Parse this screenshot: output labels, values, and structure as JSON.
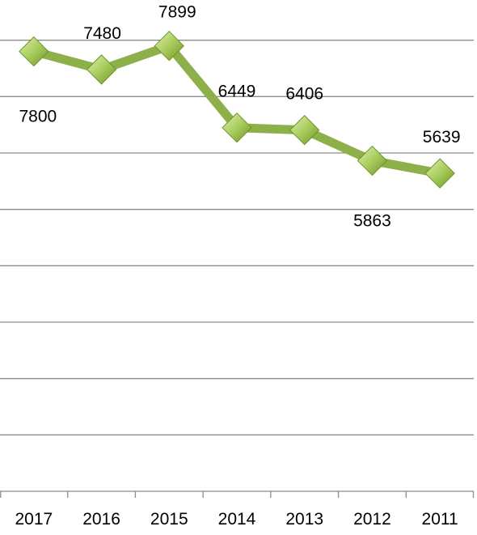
{
  "chart_data": {
    "type": "line",
    "categories": [
      "2017",
      "2016",
      "2015",
      "2014",
      "2013",
      "2012",
      "2011"
    ],
    "values": [
      7800,
      7480,
      7899,
      6449,
      6406,
      5863,
      5639
    ],
    "data_labels": [
      "7800",
      "7480",
      "7899",
      "6449",
      "6406",
      "5863",
      "5639"
    ],
    "title": "",
    "xlabel": "",
    "ylabel": "",
    "ylim": [
      0,
      9000
    ],
    "grid": true,
    "marker": "diamond",
    "colors": {
      "line": "#8db04a",
      "marker_light": "#d2e79a",
      "marker_dark": "#6e9528",
      "grid": "#8c8c8c"
    }
  }
}
